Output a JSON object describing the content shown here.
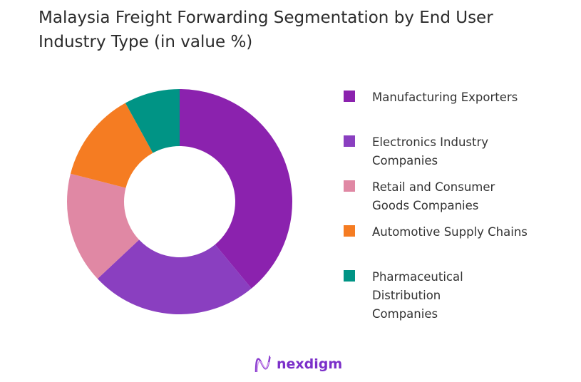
{
  "chart_data": {
    "type": "donut",
    "title": "Malaysia Freight Forwarding Segmentation by End User Industry Type (in value %)",
    "legend_position": "right",
    "categories": [
      "Manufacturing Exporters",
      "Electronics Industry Companies",
      "Retail and Consumer Goods Companies",
      "Automotive Supply Chains",
      "Pharmaceutical Distribution Companies"
    ],
    "values": [
      39,
      24,
      16,
      13,
      8
    ],
    "colors": [
      "#8b22ae",
      "#8a3fc0",
      "#e088a4",
      "#f57c22",
      "#009485"
    ]
  },
  "logo": {
    "text": "nexdigm"
  }
}
